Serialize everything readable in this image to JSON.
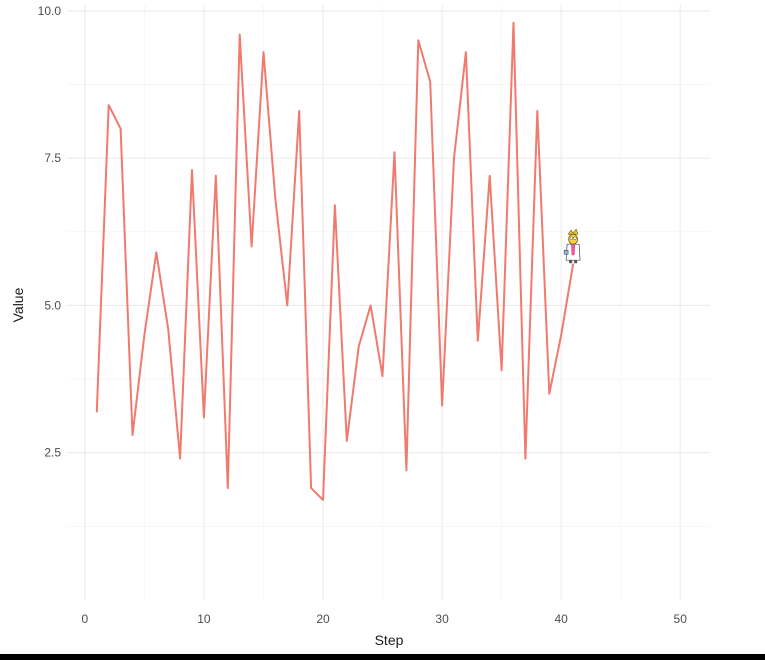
{
  "chart_data": {
    "type": "line",
    "xlabel": "Step",
    "ylabel": "Value",
    "xlim": [
      -1.5,
      52.5
    ],
    "ylim": [
      0,
      10.1
    ],
    "x_ticks": [
      0,
      10,
      20,
      30,
      40,
      50
    ],
    "x_tick_labels": [
      "0",
      "10",
      "20",
      "30",
      "40",
      "50"
    ],
    "y_ticks": [
      2.5,
      5.0,
      7.5,
      10.0
    ],
    "y_tick_labels": [
      "2.5",
      "5.0",
      "7.5",
      "10.0"
    ],
    "grid": true,
    "legend": "none",
    "series": [
      {
        "color": "#F07A6E",
        "x": [
          1,
          2,
          3,
          4,
          5,
          6,
          7,
          8,
          9,
          10,
          11,
          12,
          13,
          14,
          15,
          16,
          17,
          18,
          19,
          20,
          21,
          22,
          23,
          24,
          25,
          26,
          27,
          28,
          29,
          30,
          31,
          32,
          33,
          34,
          35,
          36,
          37,
          38,
          39,
          40,
          41
        ],
        "values": [
          3.2,
          8.4,
          8.0,
          2.8,
          4.5,
          5.9,
          4.6,
          2.4,
          7.3,
          3.1,
          7.2,
          1.9,
          9.6,
          6.0,
          9.3,
          6.8,
          5.0,
          8.3,
          1.9,
          1.7,
          6.7,
          2.7,
          4.3,
          5.0,
          3.8,
          7.6,
          2.2,
          9.5,
          8.8,
          3.3,
          7.5,
          9.3,
          4.4,
          7.2,
          3.9,
          9.8,
          2.4,
          8.3,
          3.5,
          4.5,
          5.7
        ]
      }
    ],
    "annotation_icon": "cartoon-character-marker-icon"
  }
}
